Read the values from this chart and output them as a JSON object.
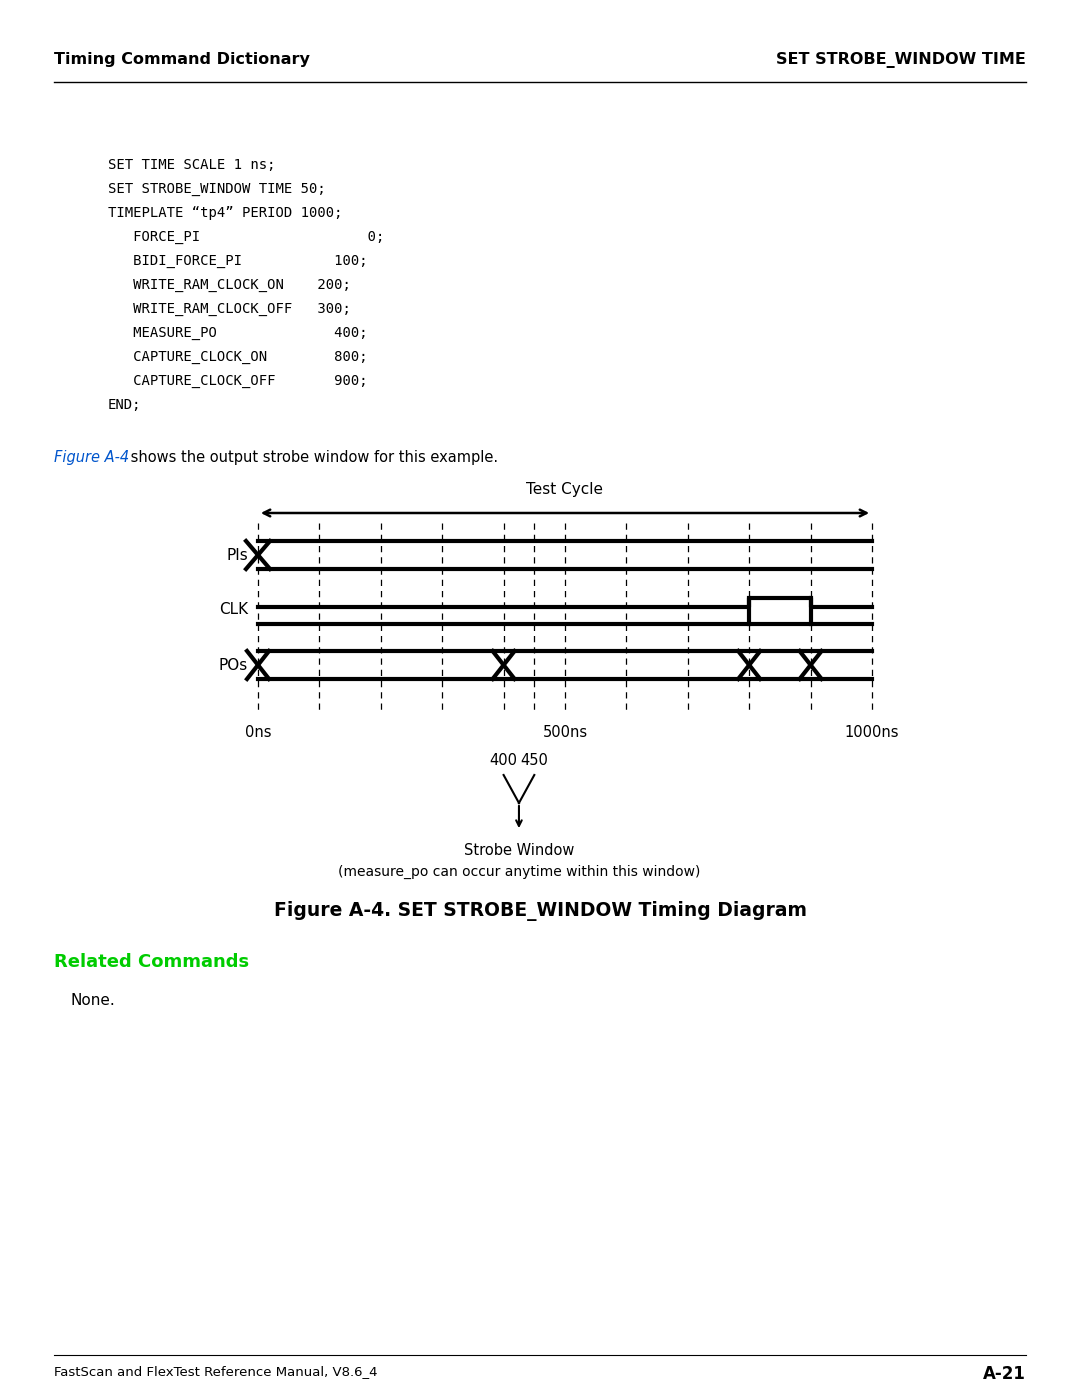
{
  "header_left": "Timing Command Dictionary",
  "header_right": "SET STROBE_WINDOW TIME",
  "figure_ref_blue": "Figure A-4",
  "figure_ref_black": " shows the output strobe window for this example.",
  "figure_caption": "Figure A-4. SET STROBE_WINDOW Timing Diagram",
  "related_commands_label": "Related Commands",
  "related_commands_color": "#00cc00",
  "none_text": "None.",
  "footer_left": "FastScan and FlexTest Reference Manual, V8.6_4",
  "footer_right": "A-21",
  "bg_color": "#ffffff",
  "strobe_window_label": "Strobe Window",
  "strobe_window_sublabel": "(measure_po can occur anytime within this window)",
  "test_cycle_label": "Test Cycle",
  "code_block": [
    "SET TIME SCALE 1 ns;",
    "SET STROBE_WINDOW TIME 50;",
    "TIMEPLATE “tp4” PERIOD 1000;",
    "   FORCE_PI                    0;",
    "   BIDI_FORCE_PI           100;",
    "   WRITE_RAM_CLOCK_ON    200;",
    "   WRITE_RAM_CLOCK_OFF   300;",
    "   MEASURE_PO              400;",
    "   CAPTURE_CLOCK_ON        800;",
    "   CAPTURE_CLOCK_OFF       900;",
    "END;"
  ]
}
